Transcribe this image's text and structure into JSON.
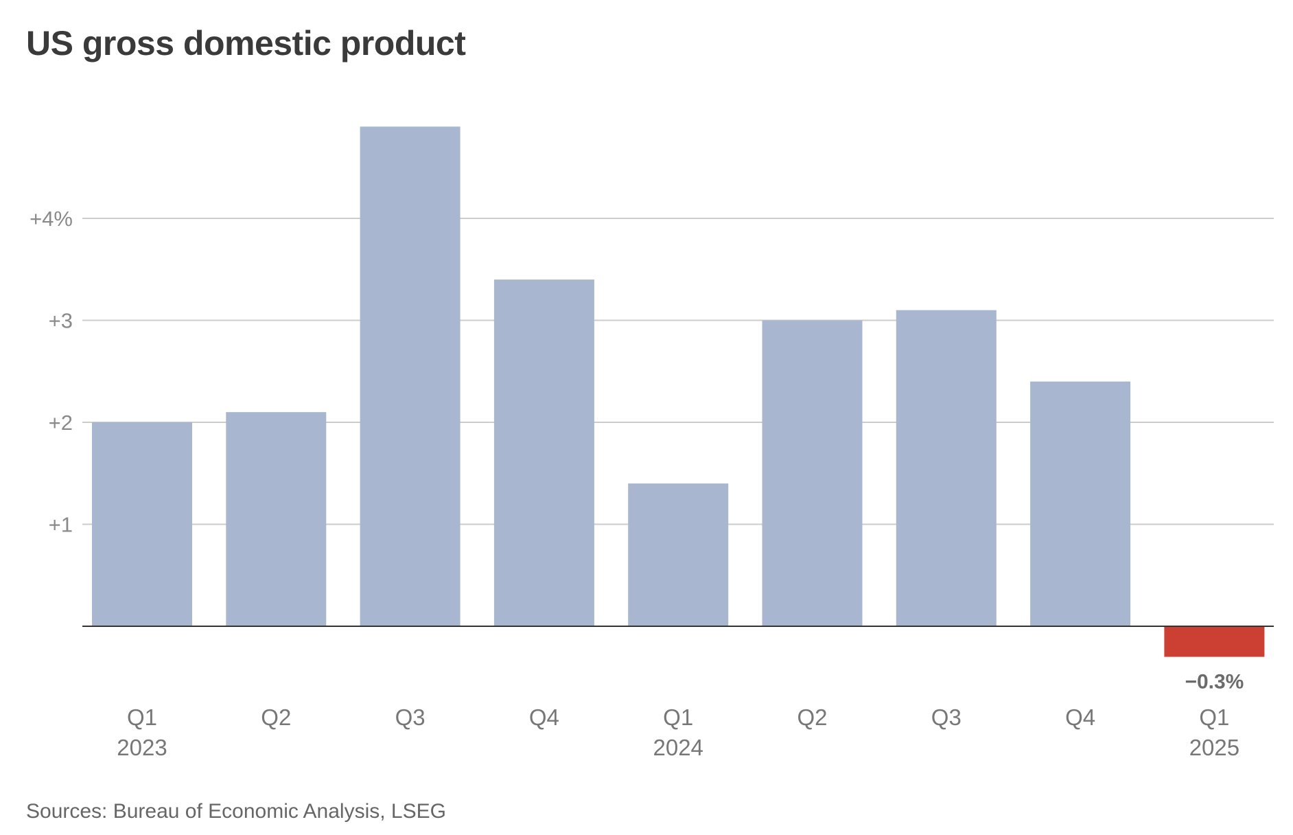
{
  "chart_data": {
    "type": "bar",
    "title": "US gross domestic product",
    "source": "Sources: Bureau of Economic Analysis, LSEG",
    "categories": [
      "Q1",
      "Q2",
      "Q3",
      "Q4",
      "Q1",
      "Q2",
      "Q3",
      "Q4",
      "Q1"
    ],
    "year_labels": [
      "2023",
      "",
      "",
      "",
      "2024",
      "",
      "",
      "",
      "2025"
    ],
    "values": [
      2.0,
      2.1,
      4.9,
      3.4,
      1.4,
      3.0,
      3.1,
      2.4,
      -0.3
    ],
    "y_ticks": [
      {
        "value": 4,
        "label": "+4%"
      },
      {
        "value": 3,
        "label": "+3"
      },
      {
        "value": 2,
        "label": "+2"
      },
      {
        "value": 1,
        "label": "+1"
      }
    ],
    "ylim": [
      -0.3,
      4.9
    ],
    "xlabel": "",
    "ylabel": "",
    "grid": true,
    "annotations": [
      {
        "index": 8,
        "text": "−0.3%"
      }
    ],
    "colors": {
      "positive": "#a9b6d0",
      "negative": "#cc3f33",
      "gridline": "#cccccc",
      "baseline": "#333333",
      "tick_text": "#8a8a8a",
      "axis_text": "#777777",
      "annotation_text": "#6b6b6b"
    }
  }
}
